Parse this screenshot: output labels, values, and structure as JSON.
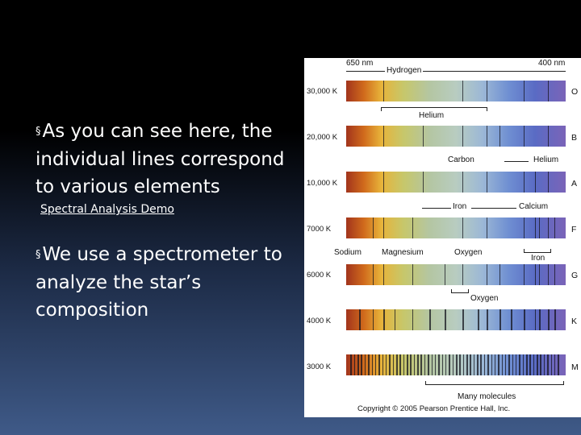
{
  "bullets": [
    "As you can see here, the individual lines correspond to various elements",
    "We use a spectrometer to analyze the star’s composition"
  ],
  "bullet_marker": "§",
  "demo_link": "Spectral Analysis Demo",
  "figure": {
    "wavelength_left": "650 nm",
    "wavelength_right": "400 nm",
    "labels": {
      "hydrogen": "Hydrogen",
      "helium": "Helium",
      "carbon": "Carbon",
      "helium2": "Helium",
      "iron": "Iron",
      "calcium": "Calcium",
      "sodium": "Sodium",
      "magnesium": "Magnesium",
      "oxygen": "Oxygen",
      "iron2": "Iron",
      "oxygen2": "Oxygen",
      "many_molecules": "Many molecules"
    },
    "spectra": [
      {
        "temp": "30,000 K",
        "class": "O"
      },
      {
        "temp": "20,000 K",
        "class": "B"
      },
      {
        "temp": "10,000 K",
        "class": "A"
      },
      {
        "temp": "7000 K",
        "class": "F"
      },
      {
        "temp": "6000 K",
        "class": "G"
      },
      {
        "temp": "4000 K",
        "class": "K"
      },
      {
        "temp": "3000 K",
        "class": "M"
      }
    ],
    "copyright": "Copyright © 2005 Pearson Prentice Hall, Inc."
  }
}
